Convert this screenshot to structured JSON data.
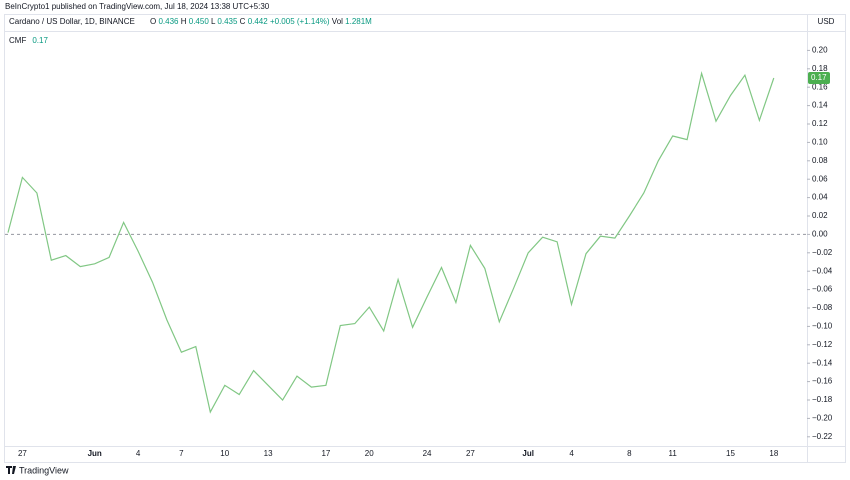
{
  "header": {
    "published": "BeInCrypto1 published on TradingView.com, Jul 18, 2024 13:38 UTC+5:30",
    "symbol": "Cardano / US Dollar, 1D, BINANCE",
    "ohlc": [
      {
        "label": "O",
        "value": "0.436"
      },
      {
        "label": "H",
        "value": "0.450"
      },
      {
        "label": "L",
        "value": "0.435"
      },
      {
        "label": "C",
        "value": "0.442"
      }
    ],
    "change": "+0.005 (+1.14%)",
    "volume_label": "Vol",
    "volume": "1.281M",
    "currency": "USD"
  },
  "footer": {
    "brand": "TradingView"
  },
  "chart_data": {
    "type": "line",
    "last_value_label": "0.17",
    "categories": [
      null,
      "27",
      null,
      null,
      null,
      null,
      "Jun",
      null,
      null,
      "4",
      null,
      null,
      "7",
      null,
      null,
      "10",
      null,
      null,
      "13",
      null,
      null,
      null,
      "17",
      null,
      null,
      "20",
      null,
      null,
      null,
      "24",
      null,
      null,
      "27",
      null,
      null,
      null,
      "Jul",
      null,
      null,
      "4",
      null,
      null,
      null,
      "8",
      null,
      null,
      "11",
      null,
      null,
      null,
      "15",
      null,
      null,
      "18"
    ],
    "series": [
      {
        "name": "CMF",
        "color": "#81c784",
        "values": [
          0.002,
          0.062,
          0.045,
          -0.028,
          -0.023,
          -0.035,
          -0.032,
          -0.025,
          0.013,
          -0.018,
          -0.052,
          -0.093,
          -0.128,
          -0.122,
          -0.193,
          -0.164,
          -0.174,
          -0.148,
          -0.164,
          -0.18,
          -0.154,
          -0.166,
          -0.164,
          -0.099,
          -0.097,
          -0.079,
          -0.105,
          -0.049,
          -0.101,
          -0.068,
          -0.036,
          -0.074,
          -0.012,
          -0.037,
          -0.095,
          -0.058,
          -0.02,
          -0.003,
          -0.008,
          -0.076,
          -0.021,
          -0.002,
          -0.004,
          0.02,
          0.045,
          0.08,
          0.107,
          0.103,
          0.175,
          0.123,
          0.151,
          0.173,
          0.124,
          0.17
        ]
      }
    ],
    "ylim": [
      -0.23,
      0.22
    ],
    "yticks": [
      {
        "value": 0.2,
        "label": "0.20"
      },
      {
        "value": 0.18,
        "label": "0.18"
      },
      {
        "value": 0.16,
        "label": "0.16"
      },
      {
        "value": 0.14,
        "label": "0.14"
      },
      {
        "value": 0.12,
        "label": "0.12"
      },
      {
        "value": 0.1,
        "label": "0.10"
      },
      {
        "value": 0.08,
        "label": "0.08"
      },
      {
        "value": 0.06,
        "label": "0.06"
      },
      {
        "value": 0.04,
        "label": "0.04"
      },
      {
        "value": 0.02,
        "label": "0.02"
      },
      {
        "value": 0,
        "label": "0.00"
      },
      {
        "value": -0.02,
        "label": "−0.02"
      },
      {
        "value": -0.04,
        "label": "−0.04"
      },
      {
        "value": -0.06,
        "label": "−0.06"
      },
      {
        "value": -0.08,
        "label": "−0.08"
      },
      {
        "value": -0.1,
        "label": "−0.10"
      },
      {
        "value": -0.12,
        "label": "−0.12"
      },
      {
        "value": -0.14,
        "label": "−0.14"
      },
      {
        "value": -0.16,
        "label": "−0.16"
      },
      {
        "value": -0.18,
        "label": "−0.18"
      },
      {
        "value": -0.2,
        "label": "−0.20"
      },
      {
        "value": -0.22,
        "label": "−0.22"
      }
    ],
    "hline": 0,
    "badge_color": "#4caf50"
  }
}
